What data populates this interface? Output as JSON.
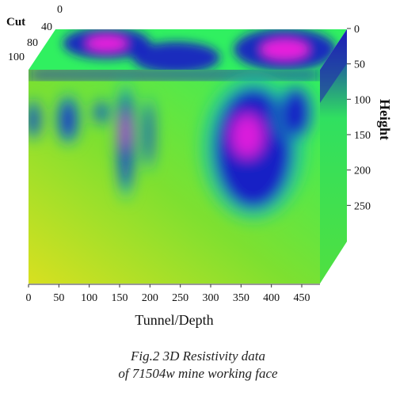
{
  "chart_data": {
    "type": "heatmap",
    "xlabel": "Tunnel/Depth",
    "ylabel": "Height",
    "zlabel": "Cut",
    "x_ticks": [
      "0",
      "50",
      "100",
      "150",
      "200",
      "250",
      "300",
      "350",
      "400",
      "450"
    ],
    "y_ticks": [
      "0",
      "50",
      "100",
      "150",
      "200",
      "250"
    ],
    "z_ticks": [
      "0",
      "40",
      "80",
      "100"
    ],
    "xlim": [
      0,
      480
    ],
    "ylim": [
      0,
      300
    ],
    "zlim": [
      0,
      100
    ],
    "colormap": [
      "#d8e020",
      "#7ee030",
      "#30f060",
      "#20c8a0",
      "#1414c8",
      "#ff20e0"
    ],
    "anomalies": [
      {
        "x": 8,
        "y": 70,
        "level": 0.6,
        "rx": 10,
        "ry": 25
      },
      {
        "x": 65,
        "y": 70,
        "level": 0.55,
        "rx": 15,
        "ry": 30
      },
      {
        "x": 120,
        "y": 60,
        "level": 0.45,
        "rx": 10,
        "ry": 15
      },
      {
        "x": 160,
        "y": 100,
        "level": 0.9,
        "rx": 12,
        "ry": 70
      },
      {
        "x": 198,
        "y": 90,
        "level": 0.65,
        "rx": 7,
        "ry": 45
      },
      {
        "x": 370,
        "y": 110,
        "level": 1.0,
        "rx": 65,
        "ry": 85
      },
      {
        "x": 440,
        "y": 60,
        "level": 0.6,
        "rx": 25,
        "ry": 35
      }
    ],
    "top_anomalies": [
      {
        "x": 100,
        "z": 35,
        "level": 1.0,
        "rx": 60,
        "rz": 30
      },
      {
        "x": 230,
        "z": 70,
        "level": 0.7,
        "rx": 60,
        "rz": 30
      },
      {
        "x": 400,
        "z": 50,
        "level": 0.95,
        "rx": 70,
        "rz": 40
      }
    ]
  },
  "caption": {
    "line1": "Fig.2 3D Resistivity data",
    "line2": "of 71504w mine working face"
  }
}
